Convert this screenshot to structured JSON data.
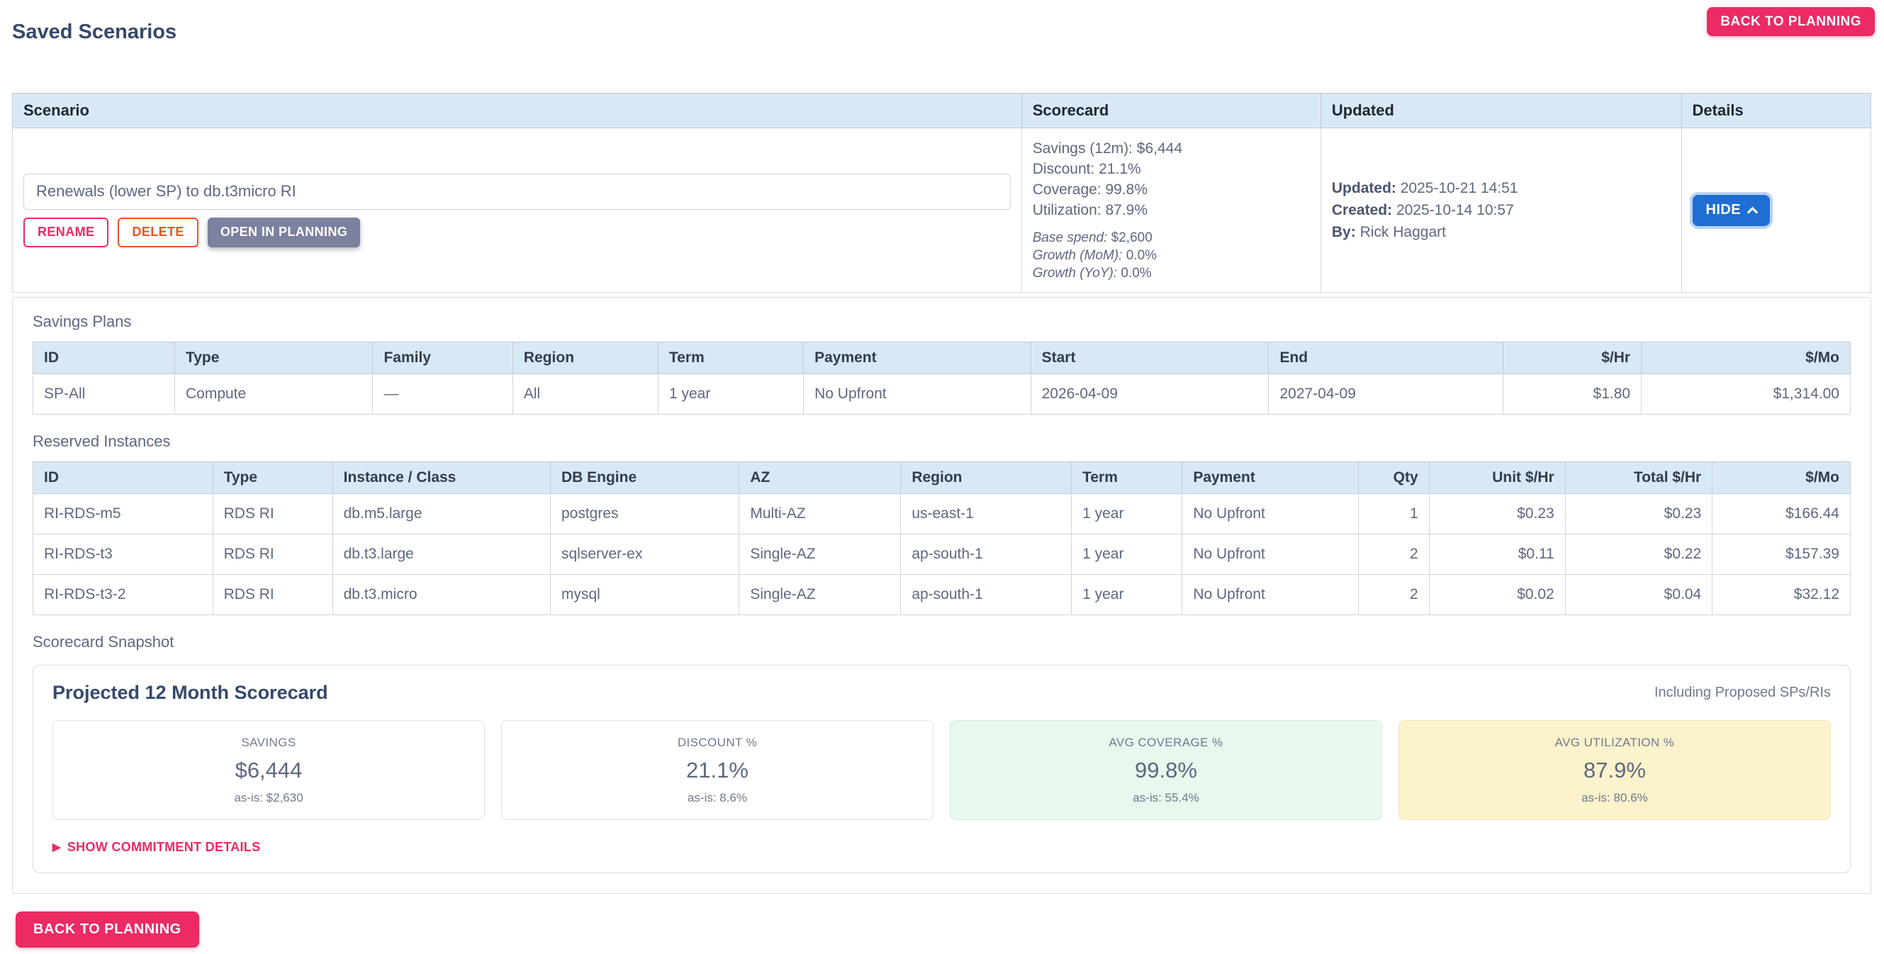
{
  "page": {
    "title": "Saved Scenarios"
  },
  "toolbar": {
    "back_to_planning": "BACK TO PLANNING"
  },
  "colors": {
    "accent_pink": "#ec2a64",
    "delete_orange": "#f4511e",
    "hide_blue": "#1e6ed4",
    "table_header_blue": "#d7e9f5",
    "coverage_green_bg": "#e7f8ec",
    "utilization_yellow_bg": "#fcf2cb"
  },
  "scenarios_table": {
    "headers": {
      "scenario": "Scenario",
      "scorecard": "Scorecard",
      "updated": "Updated",
      "details": "Details"
    },
    "row": {
      "name": "Renewals (lower SP) to db.t3micro RI",
      "rename_label": "RENAME",
      "delete_label": "DELETE",
      "open_label": "OPEN IN PLANNING",
      "scorecard_lines": {
        "savings": "Savings (12m): $6,444",
        "discount": "Discount: 21.1%",
        "coverage": "Coverage: 99.8%",
        "utilization": "Utilization: 87.9%"
      },
      "scorecard_meta": {
        "base_label": "Base spend:",
        "base_value": "$2,600",
        "mom_label": "Growth (MoM):",
        "mom_value": "0.0%",
        "yoy_label": "Growth (YoY):",
        "yoy_value": "0.0%"
      },
      "updated": {
        "updated_label": "Updated:",
        "updated_value": "2025-10-21 14:51",
        "created_label": "Created:",
        "created_value": "2025-10-14 10:57",
        "by_label": "By:",
        "by_value": "Rick Haggart"
      },
      "hide_label": "HIDE"
    }
  },
  "savings_plans": {
    "section_title": "Savings Plans",
    "headers": [
      "ID",
      "Type",
      "Family",
      "Region",
      "Term",
      "Payment",
      "Start",
      "End",
      "$/Hr",
      "$/Mo"
    ],
    "rows": [
      [
        "SP-All",
        "Compute",
        "—",
        "All",
        "1 year",
        "No Upfront",
        "2026-04-09",
        "2027-04-09",
        "$1.80",
        "$1,314.00"
      ]
    ]
  },
  "reserved_instances": {
    "section_title": "Reserved Instances",
    "headers": [
      "ID",
      "Type",
      "Instance / Class",
      "DB Engine",
      "AZ",
      "Region",
      "Term",
      "Payment",
      "Qty",
      "Unit $/Hr",
      "Total $/Hr",
      "$/Mo"
    ],
    "rows": [
      [
        "RI-RDS-m5",
        "RDS RI",
        "db.m5.large",
        "postgres",
        "Multi-AZ",
        "us-east-1",
        "1 year",
        "No Upfront",
        "1",
        "$0.23",
        "$0.23",
        "$166.44"
      ],
      [
        "RI-RDS-t3",
        "RDS RI",
        "db.t3.large",
        "sqlserver-ex",
        "Single-AZ",
        "ap-south-1",
        "1 year",
        "No Upfront",
        "2",
        "$0.11",
        "$0.22",
        "$157.39"
      ],
      [
        "RI-RDS-t3-2",
        "RDS RI",
        "db.t3.micro",
        "mysql",
        "Single-AZ",
        "ap-south-1",
        "1 year",
        "No Upfront",
        "2",
        "$0.02",
        "$0.04",
        "$32.12"
      ]
    ]
  },
  "snapshot": {
    "section_title": "Scorecard Snapshot",
    "title": "Projected 12 Month Scorecard",
    "note": "Including Proposed SPs/RIs",
    "kpis": [
      {
        "label": "SAVINGS",
        "value": "$6,444",
        "asis": "as-is: $2,630"
      },
      {
        "label": "DISCOUNT %",
        "value": "21.1%",
        "asis": "as-is: 8.6%"
      },
      {
        "label": "AVG COVERAGE %",
        "value": "99.8%",
        "asis": "as-is: 55.4%"
      },
      {
        "label": "AVG UTILIZATION %",
        "value": "87.9%",
        "asis": "as-is: 80.6%"
      }
    ],
    "show_details": "SHOW COMMITMENT DETAILS"
  }
}
